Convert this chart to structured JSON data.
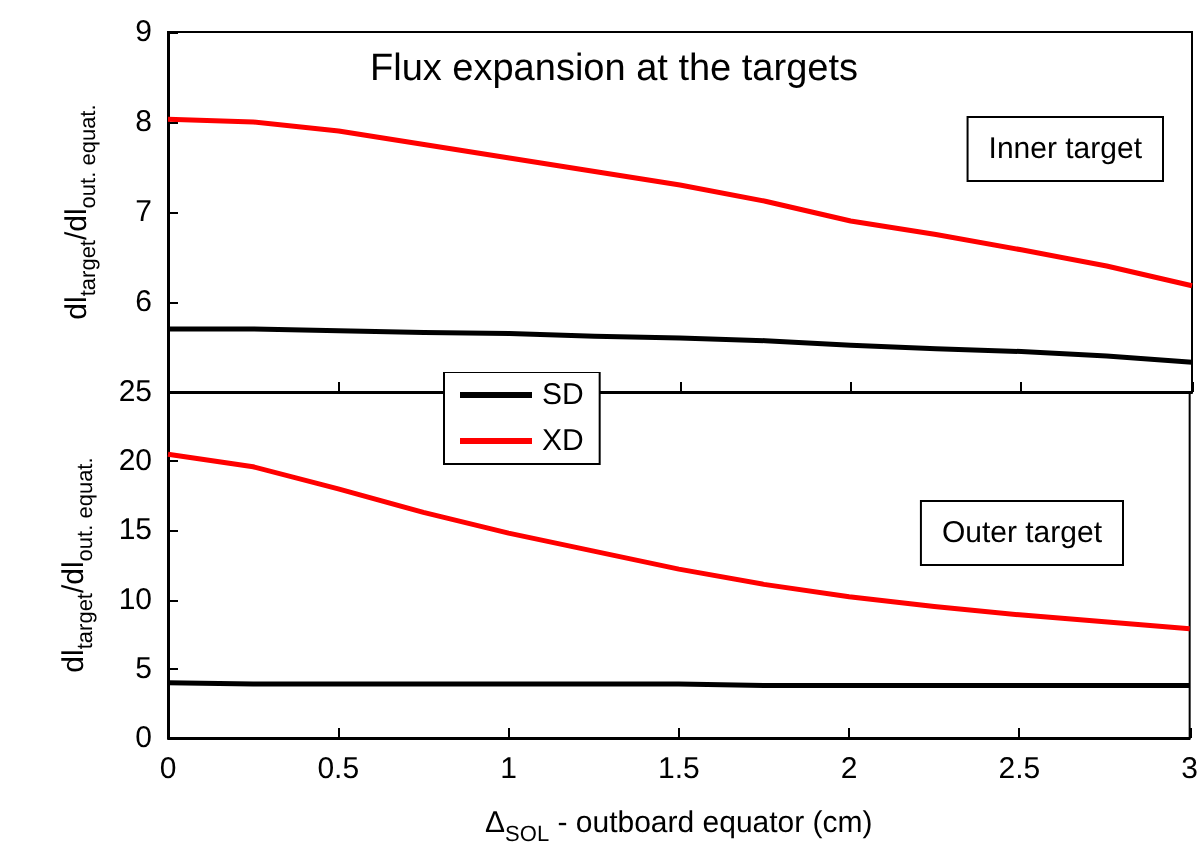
{
  "chart_data": [
    {
      "type": "line",
      "title": "Flux expansion at the targets",
      "ylabel": "dl$_{target}$/dl$_{out. equat.}$",
      "annotations": [
        "Inner target"
      ],
      "x": [
        0,
        0.25,
        0.5,
        0.75,
        1,
        1.25,
        1.5,
        1.75,
        2,
        2.25,
        2.5,
        2.75,
        3
      ],
      "series": [
        {
          "color": "#000000",
          "values": [
            5.7,
            5.7,
            5.68,
            5.66,
            5.65,
            5.62,
            5.6,
            5.57,
            5.52,
            5.48,
            5.45,
            5.4,
            5.33
          ]
        },
        {
          "color": "#ff0000",
          "values": [
            8.03,
            8.0,
            7.9,
            7.75,
            7.6,
            7.45,
            7.3,
            7.12,
            6.9,
            6.75,
            6.58,
            6.4,
            6.18
          ]
        }
      ],
      "xlim": [
        0,
        3
      ],
      "xticks": [
        0,
        0.5,
        1,
        1.5,
        2,
        2.5,
        3
      ],
      "ylim": [
        5,
        9
      ],
      "yticks": [
        6,
        7,
        8,
        9
      ],
      "tick_labels": "y",
      "grid": false,
      "legend": false
    },
    {
      "type": "line",
      "xlabel": "Δ$_{SOL}$ - outboard equator (cm)",
      "ylabel": "dl$_{target}$/dl$_{out. equat.}$",
      "annotations": [
        "Outer target"
      ],
      "x": [
        0,
        0.25,
        0.5,
        0.75,
        1,
        1.25,
        1.5,
        1.75,
        2,
        2.25,
        2.5,
        2.75,
        3
      ],
      "series": [
        {
          "name": "SD",
          "color": "#000000",
          "values": [
            4.0,
            3.9,
            3.9,
            3.9,
            3.9,
            3.9,
            3.9,
            3.8,
            3.8,
            3.8,
            3.8,
            3.8,
            3.8
          ]
        },
        {
          "name": "XD",
          "color": "#ff0000",
          "values": [
            20.5,
            19.6,
            18.0,
            16.3,
            14.8,
            13.5,
            12.2,
            11.1,
            10.2,
            9.5,
            8.9,
            8.4,
            7.9
          ]
        }
      ],
      "xlim": [
        0,
        3
      ],
      "xticks": [
        0,
        0.5,
        1,
        1.5,
        2,
        2.5,
        3
      ],
      "ylim": [
        0,
        25
      ],
      "yticks": [
        0,
        5,
        10,
        15,
        20,
        25
      ],
      "grid": false,
      "legend": "top left"
    }
  ]
}
